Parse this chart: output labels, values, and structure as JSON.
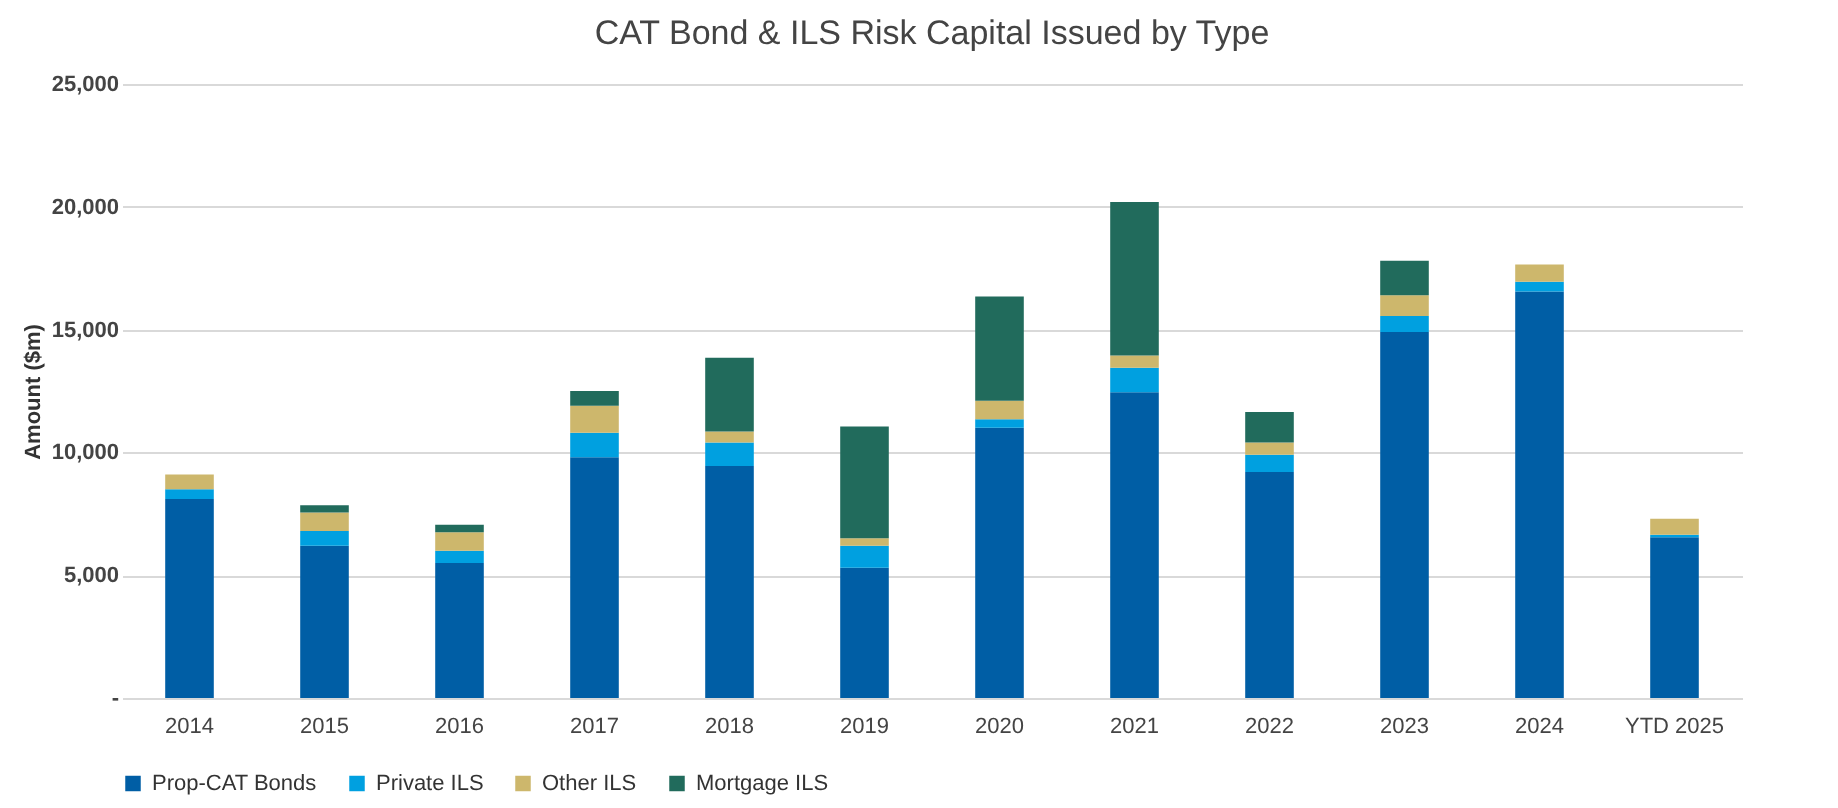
{
  "chart_data": {
    "type": "bar",
    "title": "CAT Bond & ILS Risk Capital Issued by Type",
    "ylabel": "Amount ($m)",
    "categories": [
      "2014",
      "2015",
      "2016",
      "2017",
      "2018",
      "2019",
      "2020",
      "2021",
      "2022",
      "2023",
      "2024",
      "YTD 2025"
    ],
    "stacked": true,
    "series": [
      {
        "name": "Prop-CAT Bonds",
        "color": "#005ea5",
        "values": [
          8100,
          6200,
          5500,
          9800,
          9450,
          5300,
          11000,
          12450,
          9200,
          14900,
          16550,
          6550
        ]
      },
      {
        "name": "Private ILS",
        "color": "#00a0e0",
        "values": [
          400,
          600,
          500,
          1000,
          950,
          900,
          350,
          1000,
          700,
          650,
          400,
          100
        ]
      },
      {
        "name": "Other ILS",
        "color": "#cdb76c",
        "values": [
          600,
          750,
          750,
          1100,
          450,
          300,
          750,
          500,
          500,
          850,
          700,
          650
        ]
      },
      {
        "name": "Mortgage ILS",
        "color": "#216b5c",
        "values": [
          0,
          300,
          300,
          600,
          3000,
          4550,
          4250,
          6250,
          1250,
          1400,
          0,
          0
        ]
      }
    ],
    "ylim": [
      0,
      25000
    ],
    "yticks": [
      {
        "value": 0,
        "label": "-"
      },
      {
        "value": 5000,
        "label": "5,000"
      },
      {
        "value": 10000,
        "label": "10,000"
      },
      {
        "value": 15000,
        "label": "15,000"
      },
      {
        "value": 20000,
        "label": "20,000"
      },
      {
        "value": 25000,
        "label": "25,000"
      }
    ],
    "grid": "y",
    "legend": "bottom"
  }
}
